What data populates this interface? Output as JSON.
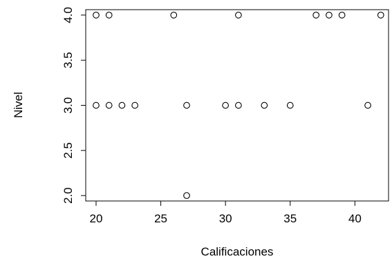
{
  "chart_data": {
    "type": "scatter",
    "title": "",
    "xlabel": "Calificaciones",
    "ylabel": "Nivel",
    "xlim": [
      19.2,
      42.6
    ],
    "ylim": [
      1.94,
      4.06
    ],
    "x_ticks": [
      20,
      25,
      30,
      35,
      40
    ],
    "y_ticks": [
      2.0,
      2.5,
      3.0,
      3.5,
      4.0
    ],
    "x_tick_labels": [
      "20",
      "25",
      "30",
      "35",
      "40"
    ],
    "y_tick_labels": [
      "2.0",
      "2.5",
      "3.0",
      "3.5",
      "4.0"
    ],
    "grid": false,
    "marker": "open-circle",
    "points": [
      {
        "x": 20,
        "y": 4
      },
      {
        "x": 21,
        "y": 4
      },
      {
        "x": 26,
        "y": 4
      },
      {
        "x": 31,
        "y": 4
      },
      {
        "x": 37,
        "y": 4
      },
      {
        "x": 38,
        "y": 4
      },
      {
        "x": 39,
        "y": 4
      },
      {
        "x": 42,
        "y": 4
      },
      {
        "x": 20,
        "y": 3
      },
      {
        "x": 21,
        "y": 3
      },
      {
        "x": 22,
        "y": 3
      },
      {
        "x": 23,
        "y": 3
      },
      {
        "x": 27,
        "y": 3
      },
      {
        "x": 30,
        "y": 3
      },
      {
        "x": 31,
        "y": 3
      },
      {
        "x": 33,
        "y": 3
      },
      {
        "x": 35,
        "y": 3
      },
      {
        "x": 41,
        "y": 3
      },
      {
        "x": 27,
        "y": 2
      }
    ]
  },
  "colors": {
    "foreground": "#000000",
    "background": "#ffffff"
  }
}
